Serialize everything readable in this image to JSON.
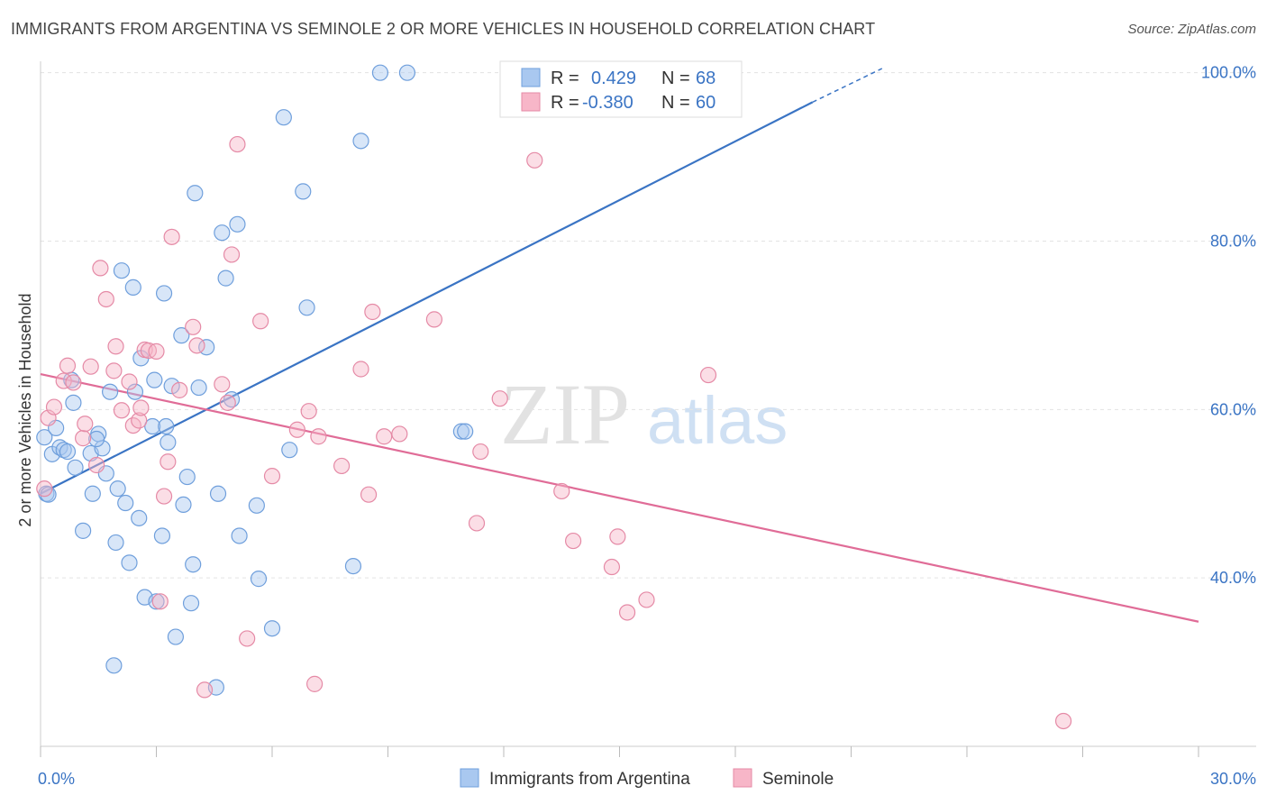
{
  "header": {
    "title": "IMMIGRANTS FROM ARGENTINA VS SEMINOLE 2 OR MORE VEHICLES IN HOUSEHOLD CORRELATION CHART",
    "source": "Source: ZipAtlas.com"
  },
  "watermark": {
    "zip": "ZIP",
    "atlas": "atlas"
  },
  "legend": {
    "rows": [
      {
        "r_label": "R =",
        "r_value": "0.429",
        "n_label": "N =",
        "n_value": "68",
        "color": "#a9c8f0"
      },
      {
        "r_label": "R =",
        "r_value": "-0.380",
        "n_label": "N =",
        "n_value": "60",
        "color": "#f7b6c8"
      }
    ]
  },
  "bottom_legend": [
    {
      "label": "Immigrants from Argentina",
      "color": "#a9c8f0"
    },
    {
      "label": "Seminole",
      "color": "#f7b6c8"
    }
  ],
  "chart_data": {
    "type": "scatter",
    "title": "IMMIGRANTS FROM ARGENTINA VS SEMINOLE 2 OR MORE VEHICLES IN HOUSEHOLD CORRELATION CHART",
    "xlabel": "",
    "ylabel": "2 or more Vehicles in Household",
    "xlim": [
      0,
      30
    ],
    "ylim": [
      20,
      102
    ],
    "x_tick_labels": [
      {
        "value": 0,
        "label": "0.0%"
      },
      {
        "value": 30,
        "label": "30.0%"
      }
    ],
    "y_tick_labels": [
      {
        "value": 100,
        "label": "100.0%"
      },
      {
        "value": 80,
        "label": "80.0%"
      },
      {
        "value": 60,
        "label": "60.0%"
      },
      {
        "value": 40,
        "label": "40.0%"
      }
    ],
    "grid": true,
    "legend_position": "top-center",
    "series": [
      {
        "name": "Immigrants from Argentina",
        "color": "#a9c8f0",
        "stroke": "#6f9fdc",
        "trend": {
          "x": [
            0,
            20
          ],
          "y": [
            50,
            96.5
          ],
          "dashed_to": [
            21.8,
            100.5
          ],
          "color": "#3a74c4"
        },
        "points": [
          [
            0.1,
            56.7
          ],
          [
            0.3,
            54.7
          ],
          [
            0.4,
            57.8
          ],
          [
            0.5,
            55.5
          ],
          [
            0.6,
            55.2
          ],
          [
            0.8,
            63.5
          ],
          [
            0.85,
            60.8
          ],
          [
            0.9,
            53.1
          ],
          [
            1.1,
            45.6
          ],
          [
            1.3,
            54.8
          ],
          [
            1.35,
            50.0
          ],
          [
            1.5,
            57.1
          ],
          [
            1.6,
            55.4
          ],
          [
            1.7,
            52.4
          ],
          [
            1.8,
            62.1
          ],
          [
            1.9,
            29.6
          ],
          [
            1.95,
            44.2
          ],
          [
            2.0,
            50.6
          ],
          [
            2.1,
            76.5
          ],
          [
            2.2,
            48.9
          ],
          [
            2.3,
            41.8
          ],
          [
            2.4,
            74.5
          ],
          [
            2.45,
            62.1
          ],
          [
            2.55,
            47.1
          ],
          [
            2.6,
            66.1
          ],
          [
            2.7,
            37.7
          ],
          [
            2.9,
            58.0
          ],
          [
            2.95,
            63.5
          ],
          [
            3.0,
            37.2
          ],
          [
            3.15,
            45.0
          ],
          [
            3.2,
            73.8
          ],
          [
            3.3,
            56.1
          ],
          [
            3.4,
            62.8
          ],
          [
            3.5,
            33.0
          ],
          [
            3.65,
            68.8
          ],
          [
            3.7,
            48.7
          ],
          [
            3.8,
            52.0
          ],
          [
            3.9,
            37.0
          ],
          [
            3.95,
            41.6
          ],
          [
            4.0,
            85.7
          ],
          [
            4.1,
            62.6
          ],
          [
            4.3,
            67.4
          ],
          [
            4.55,
            27.0
          ],
          [
            4.6,
            50.0
          ],
          [
            4.7,
            81.0
          ],
          [
            4.8,
            75.6
          ],
          [
            4.95,
            61.2
          ],
          [
            5.1,
            82.0
          ],
          [
            5.15,
            45.0
          ],
          [
            5.6,
            48.6
          ],
          [
            5.65,
            39.9
          ],
          [
            6.0,
            34.0
          ],
          [
            6.3,
            94.7
          ],
          [
            6.45,
            55.2
          ],
          [
            6.8,
            85.9
          ],
          [
            6.9,
            72.1
          ],
          [
            8.1,
            41.4
          ],
          [
            8.3,
            91.9
          ],
          [
            8.8,
            100.0
          ],
          [
            9.5,
            100.0
          ],
          [
            10.9,
            57.4
          ],
          [
            11.0,
            57.4
          ],
          [
            17.9,
            100.0
          ],
          [
            0.15,
            50.0
          ],
          [
            0.2,
            49.9
          ],
          [
            0.7,
            55.0
          ],
          [
            1.45,
            56.5
          ],
          [
            3.25,
            58.0
          ]
        ]
      },
      {
        "name": "Seminole",
        "color": "#f7b6c8",
        "stroke": "#e58aa6",
        "trend": {
          "x": [
            0,
            30
          ],
          "y": [
            64.2,
            34.8
          ],
          "color": "#e06c97"
        },
        "points": [
          [
            0.1,
            50.6
          ],
          [
            0.2,
            59.0
          ],
          [
            0.35,
            60.3
          ],
          [
            0.6,
            63.4
          ],
          [
            0.7,
            65.2
          ],
          [
            0.85,
            63.2
          ],
          [
            1.1,
            56.6
          ],
          [
            1.15,
            58.3
          ],
          [
            1.3,
            65.1
          ],
          [
            1.45,
            53.4
          ],
          [
            1.55,
            76.8
          ],
          [
            1.7,
            73.1
          ],
          [
            1.9,
            64.6
          ],
          [
            1.95,
            67.5
          ],
          [
            2.1,
            59.9
          ],
          [
            2.3,
            63.3
          ],
          [
            2.4,
            58.1
          ],
          [
            2.55,
            58.7
          ],
          [
            2.6,
            60.2
          ],
          [
            2.7,
            67.1
          ],
          [
            2.8,
            67.0
          ],
          [
            3.0,
            66.9
          ],
          [
            3.1,
            37.2
          ],
          [
            3.2,
            49.7
          ],
          [
            3.3,
            53.8
          ],
          [
            3.4,
            80.5
          ],
          [
            3.6,
            62.3
          ],
          [
            3.95,
            69.8
          ],
          [
            4.05,
            67.6
          ],
          [
            4.25,
            26.7
          ],
          [
            4.7,
            63.0
          ],
          [
            4.85,
            60.8
          ],
          [
            4.95,
            78.4
          ],
          [
            5.1,
            91.5
          ],
          [
            5.35,
            32.8
          ],
          [
            5.7,
            70.5
          ],
          [
            6.0,
            52.1
          ],
          [
            6.65,
            57.6
          ],
          [
            6.95,
            59.8
          ],
          [
            7.1,
            27.4
          ],
          [
            7.2,
            56.8
          ],
          [
            7.8,
            53.3
          ],
          [
            8.3,
            64.8
          ],
          [
            8.5,
            49.9
          ],
          [
            8.6,
            71.6
          ],
          [
            8.9,
            56.8
          ],
          [
            9.3,
            57.1
          ],
          [
            10.2,
            70.7
          ],
          [
            11.3,
            46.5
          ],
          [
            11.4,
            55.0
          ],
          [
            11.9,
            61.3
          ],
          [
            12.8,
            89.6
          ],
          [
            13.5,
            50.3
          ],
          [
            13.8,
            44.4
          ],
          [
            14.8,
            41.3
          ],
          [
            14.95,
            44.9
          ],
          [
            15.2,
            35.9
          ],
          [
            15.7,
            37.4
          ],
          [
            17.3,
            64.1
          ],
          [
            26.5,
            23.0
          ]
        ]
      }
    ]
  }
}
